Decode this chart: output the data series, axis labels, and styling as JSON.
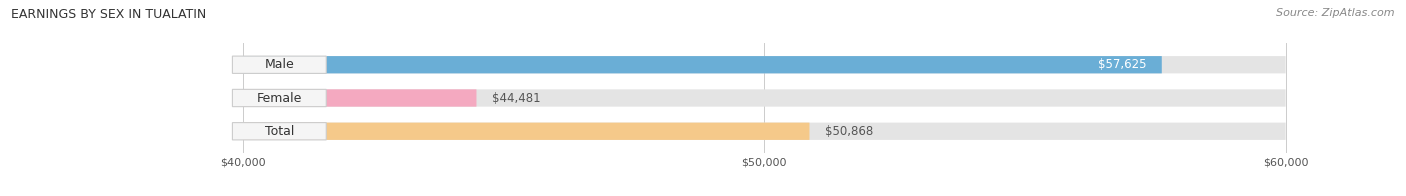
{
  "title": "EARNINGS BY SEX IN TUALATIN",
  "source": "Source: ZipAtlas.com",
  "categories": [
    "Male",
    "Female",
    "Total"
  ],
  "values": [
    57625,
    44481,
    50868
  ],
  "x_min": 40000,
  "x_max": 60000,
  "x_ticks": [
    40000,
    50000,
    60000
  ],
  "x_tick_labels": [
    "$40,000",
    "$50,000",
    "$60,000"
  ],
  "bar_colors": [
    "#6aaed6",
    "#f4a9c0",
    "#f5c98a"
  ],
  "bar_bg_color": "#e4e4e4",
  "value_labels": [
    "$57,625",
    "$44,481",
    "$50,868"
  ],
  "value_label_inside": [
    true,
    false,
    false
  ],
  "bar_height": 0.52,
  "title_fontsize": 9,
  "source_fontsize": 8,
  "label_fontsize": 9,
  "value_fontsize": 8.5,
  "tick_fontsize": 8
}
